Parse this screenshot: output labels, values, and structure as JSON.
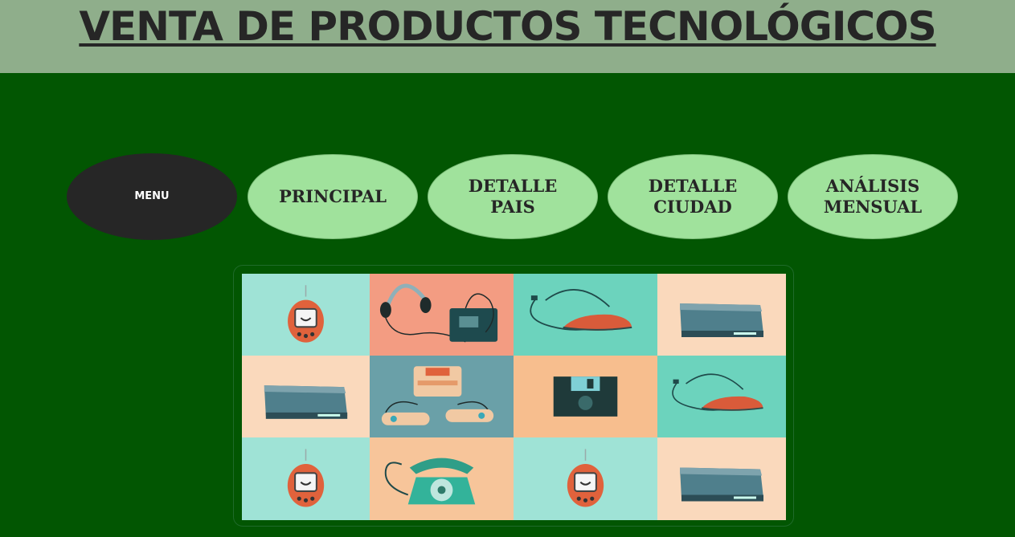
{
  "header": {
    "title": "VENTA DE PRODUCTOS TECNOLÓGICOS"
  },
  "nav": {
    "menu": "MENU",
    "items": [
      {
        "label": "PRINCIPAL"
      },
      {
        "label": "DETALLE\nPAIS"
      },
      {
        "label": "DETALLE\nCIUDAD"
      },
      {
        "label": "ANÁLISIS\nMENSUAL"
      }
    ]
  },
  "gallery": {
    "tiles": [
      {
        "icon": "tamagotchi-icon",
        "bg": "#9fe3d6"
      },
      {
        "icon": "walkman-headphones-icon",
        "bg": "#f39c82"
      },
      {
        "icon": "mouse-icon",
        "bg": "#6cd3bd"
      },
      {
        "icon": "console-box-icon",
        "bg": "#fad9bc"
      },
      {
        "icon": "console-box-icon",
        "bg": "#fad9bc"
      },
      {
        "icon": "game-console-controllers-icon",
        "bg": "#6aa0a8"
      },
      {
        "icon": "floppy-disk-icon",
        "bg": "#f7be8e"
      },
      {
        "icon": "mouse-icon",
        "bg": "#6cd3bd"
      },
      {
        "icon": "tamagotchi-icon",
        "bg": "#9fe3d6"
      },
      {
        "icon": "rotary-phone-icon",
        "bg": "#f7c59a"
      },
      {
        "icon": "tamagotchi-icon",
        "bg": "#9fe3d6"
      },
      {
        "icon": "console-box-icon",
        "bg": "#fad9bc"
      }
    ]
  }
}
